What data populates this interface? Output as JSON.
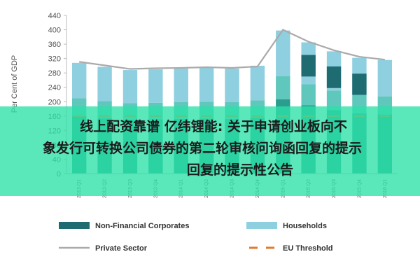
{
  "chart_data": {
    "type": "bar",
    "ylabel": "Per Cent of GDP",
    "ylim": [
      0,
      440
    ],
    "yticks": [
      0,
      40,
      80,
      120,
      160,
      200,
      240,
      280,
      320,
      360,
      400,
      440
    ],
    "categories": [
      "2013 Q1",
      "2013 Q2",
      "2013 Q3",
      "2013 Q4",
      "2014 Q1",
      "2014 Q2",
      "2014 Q3",
      "2014 Q4",
      "2015 Q1",
      "2015 Q2",
      "2015 Q3",
      "2015 Q4",
      "2016 Q1"
    ],
    "series": [
      {
        "name": "Non-Financial Corporates",
        "kind": "stacked-bar",
        "color": "#1e6b72",
        "values": [
          0,
          0,
          0,
          0,
          0,
          0,
          0,
          0,
          0,
          330,
          298,
          278,
          0
        ]
      },
      {
        "name": "Households",
        "kind": "stacked-bar",
        "color": "#8ecfe0",
        "values": [
          308,
          297,
          288,
          290,
          292,
          294,
          292,
          300,
          398,
          365,
          340,
          322,
          316
        ]
      },
      {
        "name": "Private Sector",
        "kind": "line",
        "color": "#aaaaaa",
        "values": [
          311,
          301,
          291,
          293,
          294,
          296,
          294,
          298,
          400,
          367,
          343,
          325,
          317
        ]
      },
      {
        "name": "EU Threshold",
        "kind": "dashed-line",
        "color": "#e07a2c",
        "values": [
          160,
          160,
          160,
          160,
          160,
          160,
          160,
          160,
          160,
          160,
          160,
          160,
          160
        ]
      }
    ],
    "segment_colors": [
      "#2a9d8f",
      "#5fc7bb",
      "#8ecfe0"
    ],
    "legend_position": "bottom",
    "grid": false
  },
  "overlay": {
    "line1": "线上配资靠谱 亿纬锂能: 关于申请创业板向不",
    "line2": "象发行可转换公司债券的第二轮审核问询函回复的提示",
    "line3": "回复的提示性公告"
  }
}
